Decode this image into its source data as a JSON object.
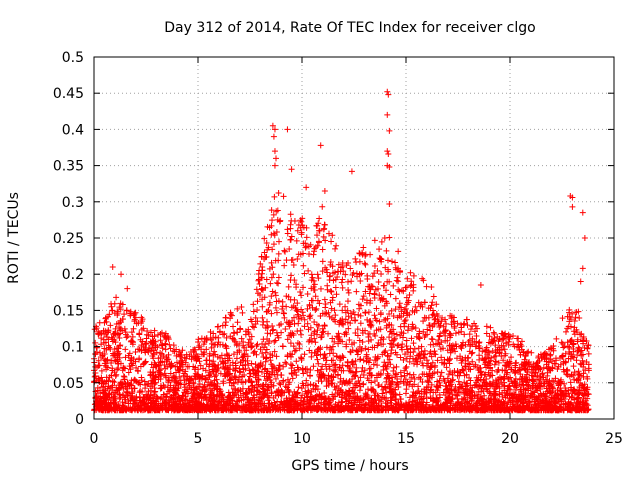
{
  "chart_data": {
    "type": "scatter",
    "title": "Day 312 of 2014, Rate Of TEC Index for receiver clgo",
    "xlabel": "GPS time / hours",
    "ylabel": "ROTI / TECUs",
    "xlim": [
      0,
      25
    ],
    "ylim": [
      0,
      0.5
    ],
    "xticks": [
      0,
      5,
      10,
      15,
      20,
      25
    ],
    "yticks": [
      0,
      0.05,
      0.1,
      0.15,
      0.2,
      0.25,
      0.3,
      0.35,
      0.4,
      0.45,
      0.5
    ],
    "xtick_labels": [
      "0",
      "5",
      "10",
      "15",
      "20",
      "25"
    ],
    "ytick_labels": [
      "0",
      "0.05",
      "0.1",
      "0.15",
      "0.2",
      "0.25",
      "0.3",
      "0.35",
      "0.4",
      "0.45",
      "0.5"
    ],
    "grid": true,
    "marker": "+",
    "series": [
      {
        "name": "ROTI",
        "color": "#ff0000",
        "data_range_hours": [
          0,
          23.8
        ],
        "envelope": {
          "x": [
            0,
            0.5,
            1,
            1.5,
            2,
            2.5,
            3,
            3.5,
            4,
            4.5,
            5,
            5.5,
            6,
            6.5,
            7,
            7.5,
            8,
            8.5,
            9,
            9.5,
            10,
            10.5,
            11,
            11.5,
            12,
            12.5,
            13,
            13.5,
            14,
            14.5,
            15,
            15.5,
            16,
            16.5,
            17,
            17.5,
            18,
            18.5,
            19,
            19.5,
            20,
            20.5,
            21,
            21.5,
            22,
            22.5,
            23,
            23.5,
            23.8
          ],
          "y": [
            0.13,
            0.14,
            0.17,
            0.16,
            0.15,
            0.14,
            0.12,
            0.12,
            0.1,
            0.09,
            0.11,
            0.12,
            0.13,
            0.15,
            0.16,
            0.13,
            0.22,
            0.3,
            0.32,
            0.28,
            0.29,
            0.26,
            0.3,
            0.25,
            0.23,
            0.22,
            0.24,
            0.25,
            0.26,
            0.24,
            0.22,
            0.2,
            0.2,
            0.16,
            0.15,
            0.14,
            0.14,
            0.13,
            0.13,
            0.12,
            0.12,
            0.11,
            0.1,
            0.09,
            0.1,
            0.14,
            0.16,
            0.14,
            0.1
          ]
        },
        "outliers": [
          {
            "x": 0.9,
            "y": 0.21
          },
          {
            "x": 1.3,
            "y": 0.2
          },
          {
            "x": 1.6,
            "y": 0.18
          },
          {
            "x": 8.6,
            "y": 0.405
          },
          {
            "x": 8.7,
            "y": 0.4
          },
          {
            "x": 8.65,
            "y": 0.39
          },
          {
            "x": 8.7,
            "y": 0.37
          },
          {
            "x": 8.75,
            "y": 0.36
          },
          {
            "x": 8.7,
            "y": 0.35
          },
          {
            "x": 9.3,
            "y": 0.4
          },
          {
            "x": 9.5,
            "y": 0.345
          },
          {
            "x": 10.2,
            "y": 0.32
          },
          {
            "x": 10.9,
            "y": 0.378
          },
          {
            "x": 11.1,
            "y": 0.315
          },
          {
            "x": 12.4,
            "y": 0.342
          },
          {
            "x": 14.1,
            "y": 0.452
          },
          {
            "x": 14.15,
            "y": 0.448
          },
          {
            "x": 14.1,
            "y": 0.42
          },
          {
            "x": 14.2,
            "y": 0.398
          },
          {
            "x": 14.1,
            "y": 0.37
          },
          {
            "x": 14.15,
            "y": 0.366
          },
          {
            "x": 14.1,
            "y": 0.35
          },
          {
            "x": 14.2,
            "y": 0.348
          },
          {
            "x": 14.2,
            "y": 0.297
          },
          {
            "x": 18.6,
            "y": 0.185
          },
          {
            "x": 22.9,
            "y": 0.308
          },
          {
            "x": 23.0,
            "y": 0.306
          },
          {
            "x": 23.0,
            "y": 0.293
          },
          {
            "x": 23.5,
            "y": 0.285
          },
          {
            "x": 23.6,
            "y": 0.25
          },
          {
            "x": 23.5,
            "y": 0.208
          },
          {
            "x": 23.4,
            "y": 0.19
          }
        ]
      }
    ]
  }
}
